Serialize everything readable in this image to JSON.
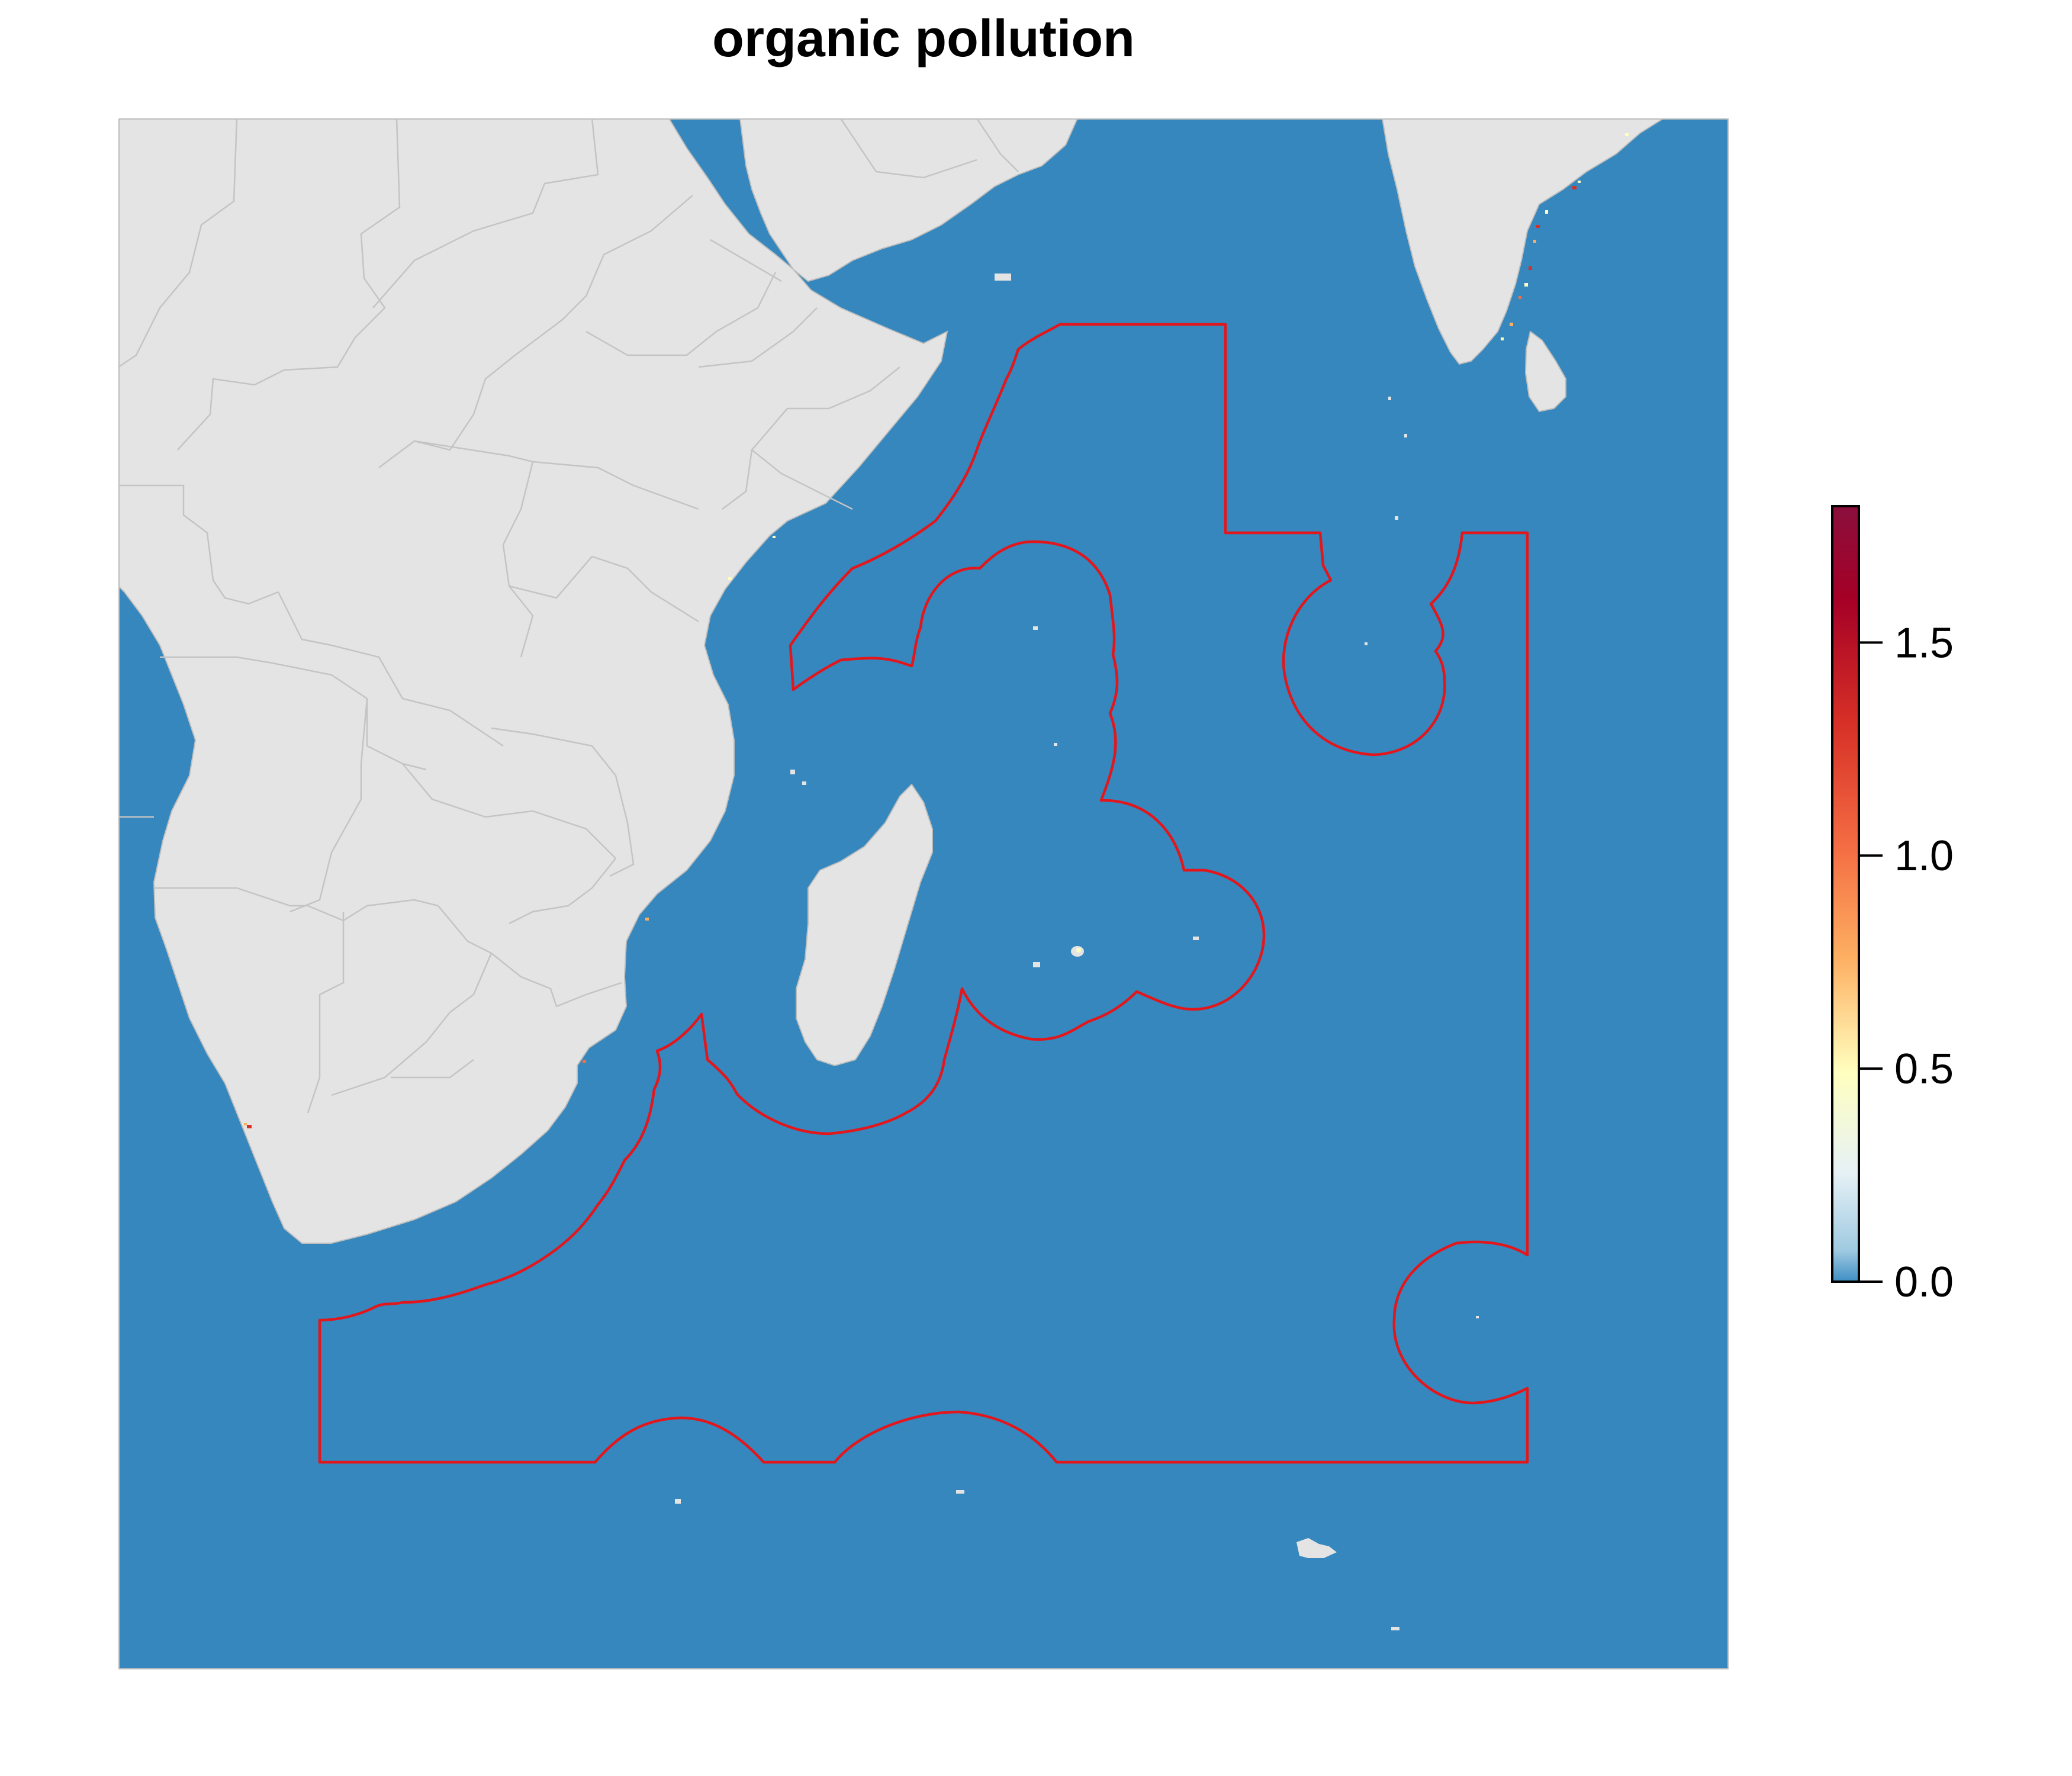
{
  "title": "organic pollution",
  "colors": {
    "ocean": "#3587bd",
    "land": "#e4e4e4",
    "country_border": "#c4c4c4",
    "boundary": "#e3161c",
    "frame": "#bdbdbd"
  },
  "legend": {
    "type": "continuous colorbar",
    "placement": "right",
    "min": 0.0,
    "max": 1.82,
    "ticks": [
      "0.0",
      "0.5",
      "1.0",
      "1.5"
    ],
    "tick_values": [
      0.0,
      0.5,
      1.0,
      1.5
    ],
    "palette": [
      "#3e8ec4",
      "#9fcae1",
      "#e6f1f6",
      "#ffffbf",
      "#fdae61",
      "#f46d43",
      "#d73027",
      "#a50026",
      "#8a0f3c"
    ]
  },
  "map": {
    "region": "Western Indian Ocean",
    "features": [
      "land masses",
      "country borders",
      "red management-area boundary",
      "high-pollution coastal pixels"
    ]
  }
}
